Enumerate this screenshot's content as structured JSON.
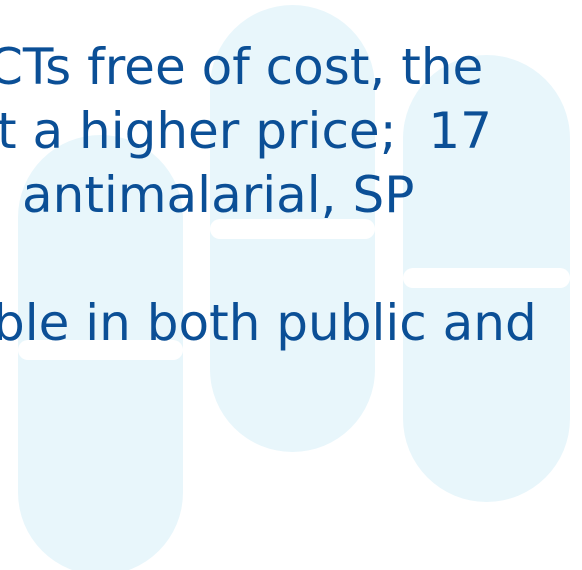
{
  "lines": [
    "CTs free of cost, the",
    "t a higher price;  17",
    "antimalarial, SP",
    "ble in both public and"
  ]
}
